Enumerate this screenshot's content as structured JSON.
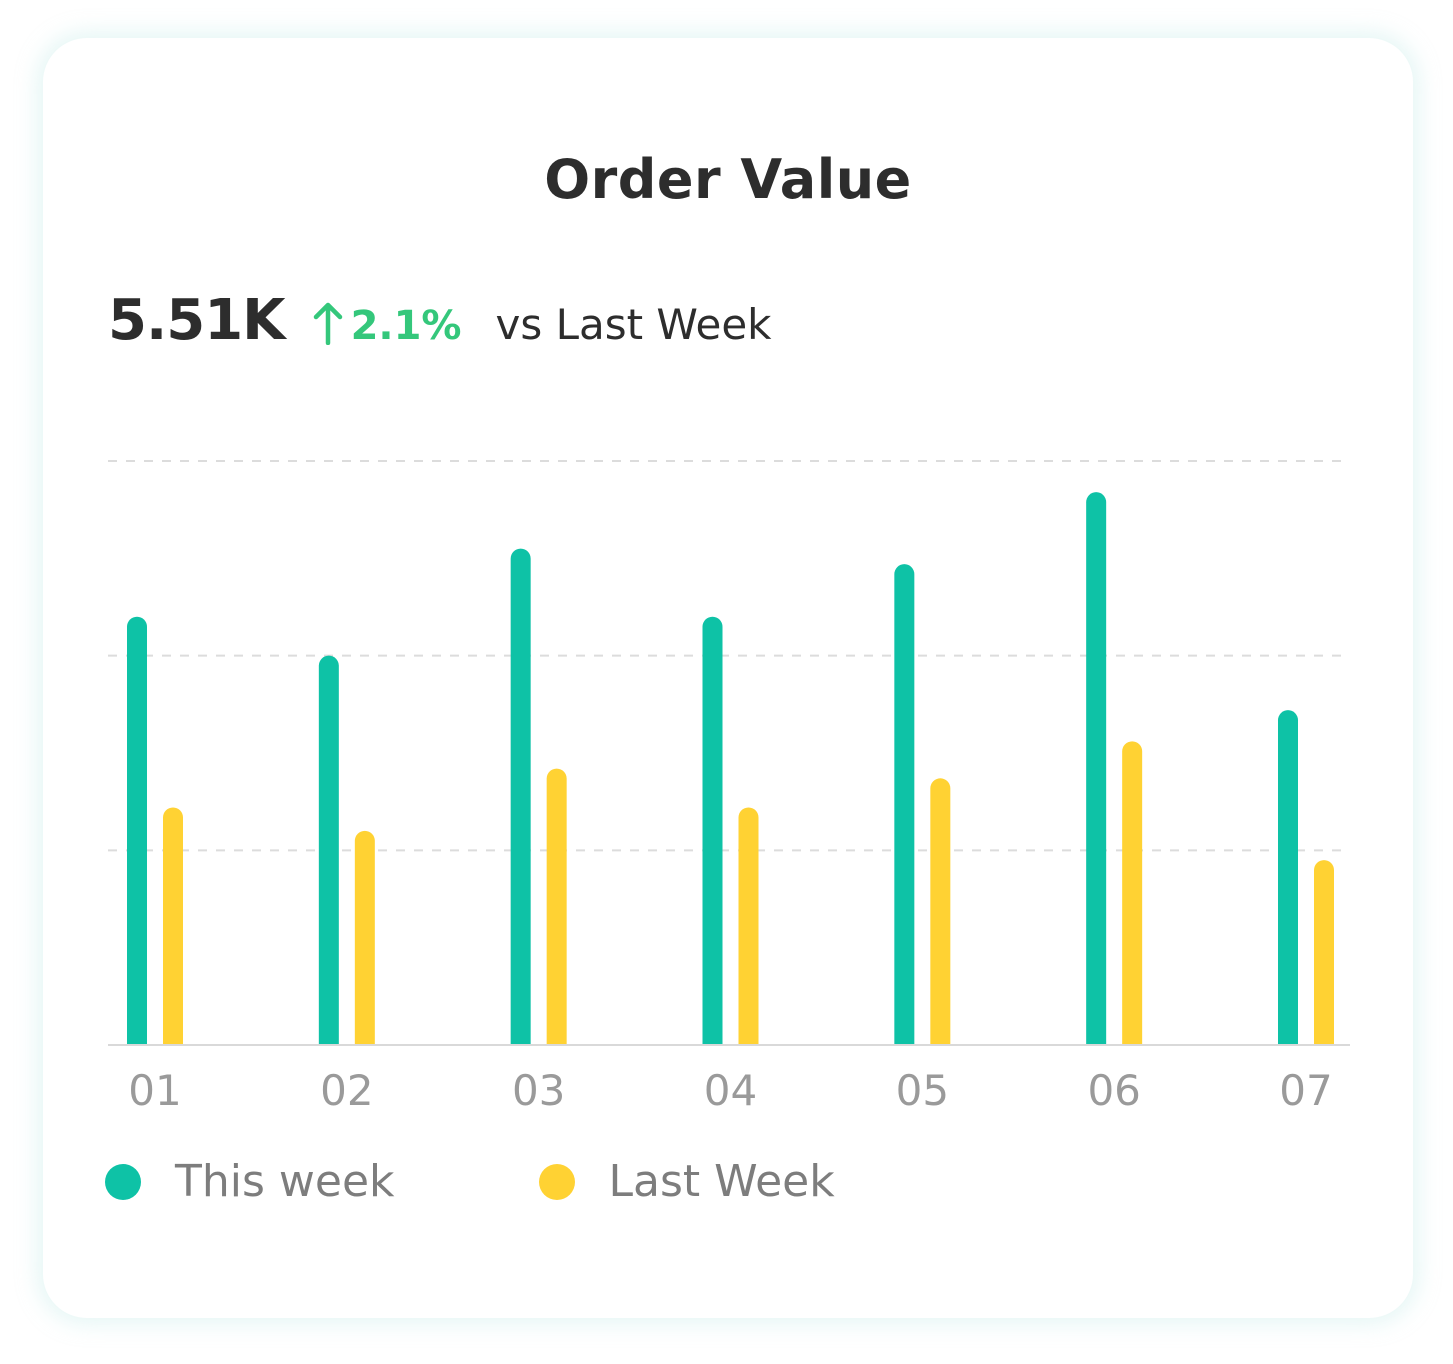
{
  "card": {
    "title": "Order Value"
  },
  "summary": {
    "value": "5.51K",
    "change": "2.1%",
    "trend_icon": "arrow-up-icon",
    "comparison": "vs Last Week"
  },
  "colors": {
    "this_week": "#0ec2a6",
    "last_week": "#ffd233",
    "trend_up": "#34c77b",
    "grid": "#dcdcdc",
    "axis": "#d9d9d9",
    "tick_label": "#9a9a9a"
  },
  "chart_data": {
    "type": "bar",
    "categories": [
      "01",
      "02",
      "03",
      "04",
      "05",
      "06",
      "07"
    ],
    "series": [
      {
        "name": "This week",
        "color": "#0ec2a6",
        "values": [
          2.2,
          2.0,
          2.55,
          2.2,
          2.47,
          2.84,
          1.72
        ]
      },
      {
        "name": "Last Week",
        "color": "#ffd233",
        "values": [
          1.22,
          1.1,
          1.42,
          1.22,
          1.37,
          1.56,
          0.95
        ]
      }
    ],
    "ylim": [
      0,
      3
    ],
    "y_gridlines": [
      1,
      2,
      3
    ],
    "grid": true,
    "legend_position": "bottom-left",
    "title": "",
    "xlabel": "",
    "ylabel": ""
  },
  "legend": {
    "items": [
      {
        "label": "This week",
        "color": "#0ec2a6"
      },
      {
        "label": "Last Week",
        "color": "#ffd233"
      }
    ]
  }
}
